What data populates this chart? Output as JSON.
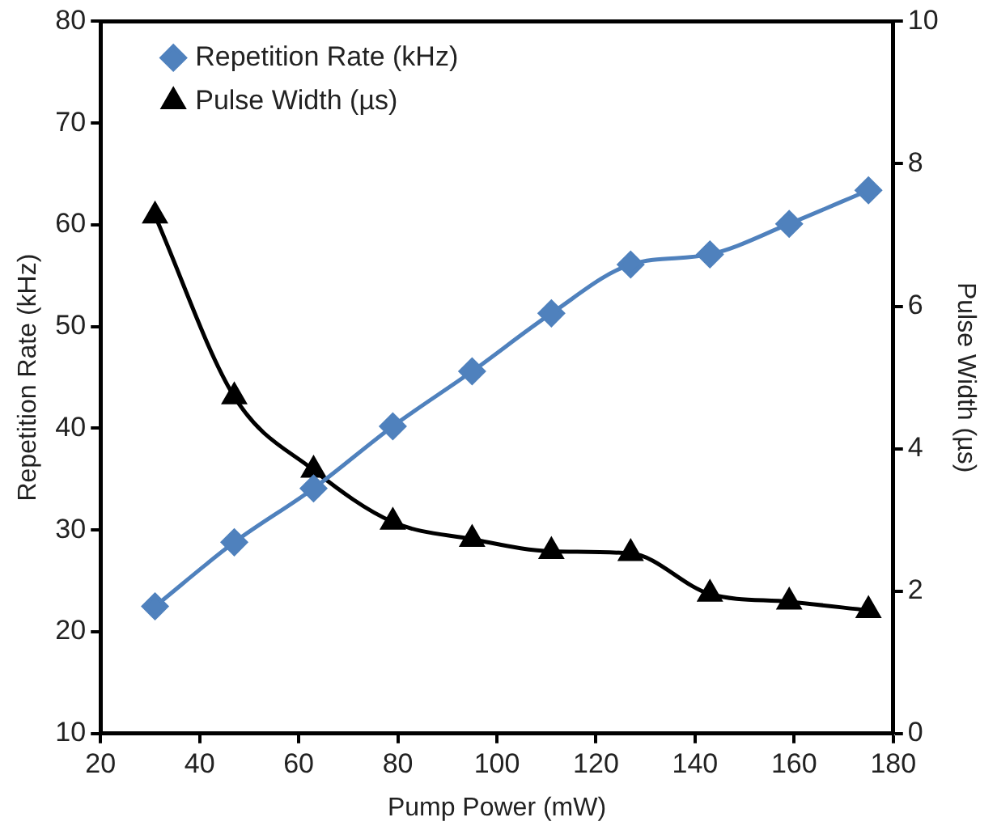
{
  "chart_data": {
    "type": "line",
    "xlabel": "Pump Power (mW)",
    "ylabel": "Repetition Rate (kHz)",
    "y2label": "Pulse Width (µs)",
    "x": [
      31,
      47,
      63,
      79,
      95,
      111,
      127,
      143,
      159,
      175
    ],
    "series": [
      {
        "name": "Repetition Rate (kHz)",
        "color": "#4f81bd",
        "marker": "diamond",
        "values": [
          22.5,
          28.8,
          34.1,
          40.2,
          45.6,
          51.3,
          56.1,
          57.1,
          60.1,
          63.4
        ]
      },
      {
        "name": "Pulse Width (µs)",
        "color": "#000000",
        "marker": "triangle",
        "axis": "y2",
        "values": [
          7.27,
          4.73,
          3.7,
          2.97,
          2.73,
          2.56,
          2.53,
          1.96,
          1.85,
          1.73
        ]
      }
    ],
    "xlim": [
      20,
      180
    ],
    "xticks": [
      20,
      40,
      60,
      80,
      100,
      120,
      140,
      160,
      180
    ],
    "ylim": [
      10,
      80
    ],
    "yticks": [
      10,
      20,
      30,
      40,
      50,
      60,
      70,
      80
    ],
    "y2lim": [
      0,
      10
    ],
    "y2ticks": [
      0,
      2,
      4,
      6,
      8,
      10
    ],
    "grid": false,
    "legend": "top left"
  }
}
